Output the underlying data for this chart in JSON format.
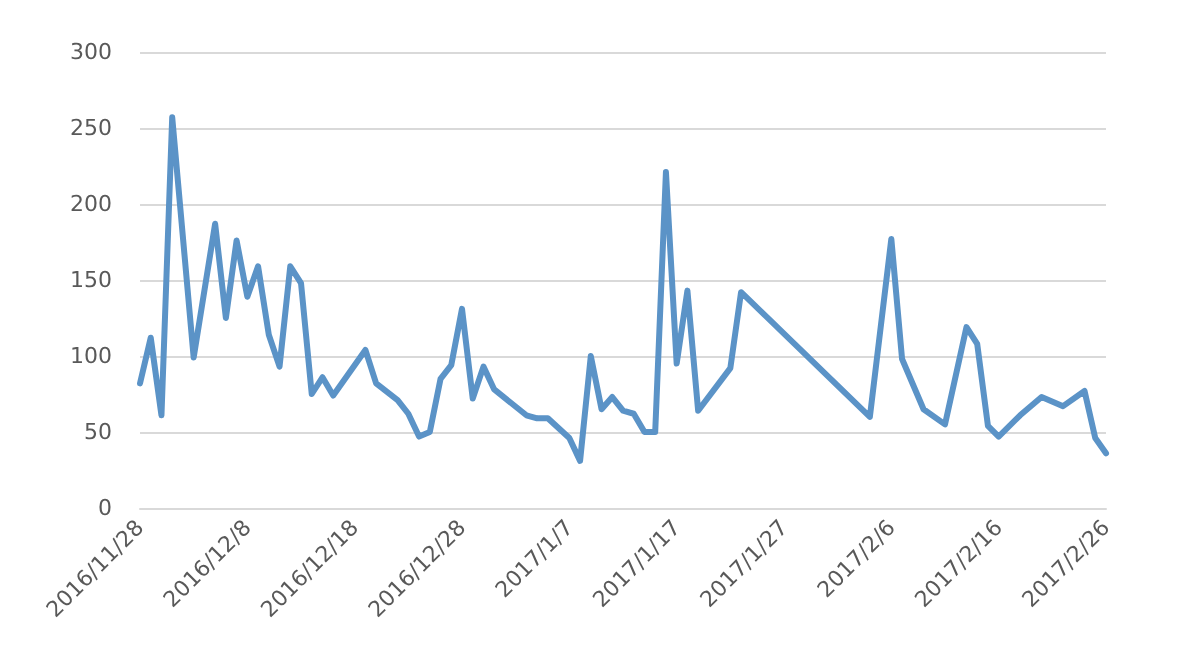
{
  "chart_data": {
    "type": "line",
    "x": [
      "2016-11-28",
      "2016-11-29",
      "2016-11-30",
      "2016-12-01",
      "2016-12-03",
      "2016-12-05",
      "2016-12-06",
      "2016-12-07",
      "2016-12-08",
      "2016-12-09",
      "2016-12-10",
      "2016-12-11",
      "2016-12-12",
      "2016-12-13",
      "2016-12-14",
      "2016-12-15",
      "2016-12-16",
      "2016-12-19",
      "2016-12-20",
      "2016-12-22",
      "2016-12-23",
      "2016-12-24",
      "2016-12-25",
      "2016-12-26",
      "2016-12-27",
      "2016-12-28",
      "2016-12-29",
      "2016-12-30",
      "2016-12-31",
      "2017-01-03",
      "2017-01-04",
      "2017-01-05",
      "2017-01-07",
      "2017-01-08",
      "2017-01-09",
      "2017-01-10",
      "2017-01-11",
      "2017-01-12",
      "2017-01-13",
      "2017-01-14",
      "2017-01-15",
      "2017-01-16",
      "2017-01-17",
      "2017-01-18",
      "2017-01-19",
      "2017-01-22",
      "2017-01-23",
      "2017-02-04",
      "2017-02-06",
      "2017-02-07",
      "2017-02-09",
      "2017-02-11",
      "2017-02-13",
      "2017-02-14",
      "2017-02-15",
      "2017-02-16",
      "2017-02-18",
      "2017-02-20",
      "2017-02-22",
      "2017-02-24",
      "2017-02-25",
      "2017-02-26"
    ],
    "series": [
      {
        "color": "#5b93c7",
        "values": [
          82,
          112,
          61,
          257,
          99,
          187,
          125,
          176,
          139,
          159,
          114,
          93,
          159,
          148,
          75,
          86,
          74,
          104,
          82,
          71,
          62,
          47,
          50,
          85,
          94,
          131,
          72,
          93,
          78,
          61,
          59,
          59,
          46,
          31,
          100,
          65,
          73,
          64,
          62,
          50,
          50,
          221,
          95,
          143,
          64,
          92,
          142,
          60,
          177,
          98,
          65,
          55,
          119,
          108,
          54,
          47,
          61,
          73,
          67,
          77,
          46,
          36
        ]
      }
    ],
    "xlim": [
      "2016-11-28",
      "2017-02-26"
    ],
    "xticks": [
      {
        "value": "2016-11-28",
        "label": "2016/11/28"
      },
      {
        "value": "2016-12-08",
        "label": "2016/12/8"
      },
      {
        "value": "2016-12-18",
        "label": "2016/12/18"
      },
      {
        "value": "2016-12-28",
        "label": "2016/12/28"
      },
      {
        "value": "2017-01-07",
        "label": "2017/1/7"
      },
      {
        "value": "2017-01-17",
        "label": "2017/1/17"
      },
      {
        "value": "2017-01-27",
        "label": "2017/1/27"
      },
      {
        "value": "2017-02-06",
        "label": "2017/2/6"
      },
      {
        "value": "2017-02-16",
        "label": "2017/2/16"
      },
      {
        "value": "2017-02-26",
        "label": "2017/2/26"
      }
    ],
    "ylim": [
      0,
      300
    ],
    "yticks": [
      0,
      50,
      100,
      150,
      200,
      250,
      300
    ],
    "grid": "y",
    "marker": "none",
    "line_style": "solid"
  }
}
